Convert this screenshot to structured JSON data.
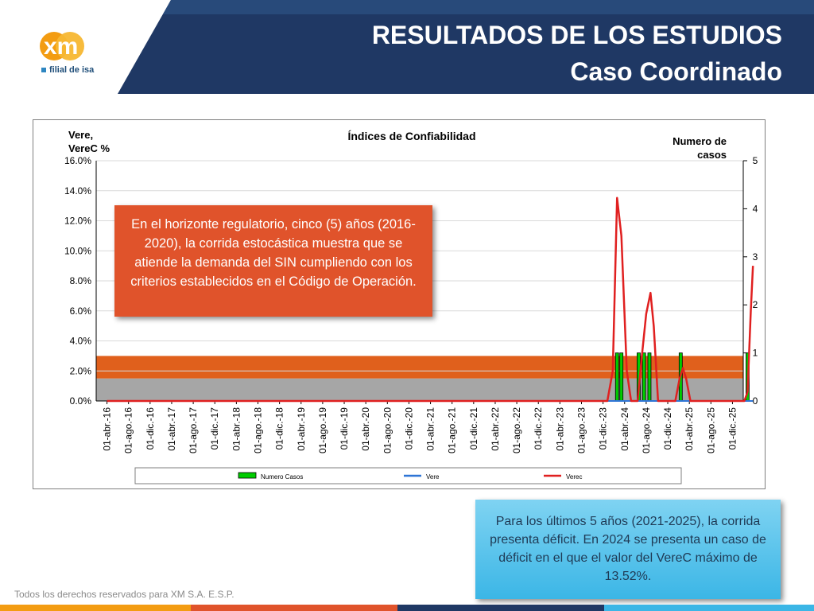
{
  "header": {
    "title_line1": "RESULTADOS DE LOS ESTUDIOS",
    "title_line2": "Caso Coordinado",
    "logo_text": "xm",
    "logo_subtext": "filial de isa"
  },
  "callouts": {
    "orange": "En el horizonte regulatorio, cinco (5) años (2016-2020), la corrida estocástica muestra que se atiende la demanda del SIN cumpliendo con los criterios establecidos en el Código de Operación.",
    "blue": "Para los últimos 5 años (2021-2025), la corrida presenta déficit. En 2024 se presenta un caso de déficit en el que el valor del VereC máximo de 13.52%."
  },
  "footer": "Todos los derechos reservados para XM S.A. E.S.P.",
  "colors": {
    "navy": "#1f3864",
    "orange_band": "#e0601c",
    "gray_band": "#a6a6a6",
    "callout_orange": "#e0532b",
    "callout_blue": "#3bb6e6",
    "series_casos": "#00cc00",
    "series_vere": "#2e75d6",
    "series_verec": "#e02020"
  },
  "chart_data": {
    "type": "line",
    "title": "Índices de Confiabilidad",
    "ylabel": "Vere, VereC %",
    "y2label": "Numero de casos",
    "ylim": [
      0,
      16
    ],
    "y2lim": [
      0,
      5
    ],
    "yticks": [
      "0.0%",
      "2.0%",
      "4.0%",
      "6.0%",
      "8.0%",
      "10.0%",
      "12.0%",
      "14.0%",
      "16.0%"
    ],
    "y2ticks": [
      "0",
      "1",
      "2",
      "3",
      "4",
      "5"
    ],
    "categories": [
      "01-abr.-16",
      "01-ago.-16",
      "01-dic.-16",
      "01-abr.-17",
      "01-ago.-17",
      "01-dic.-17",
      "01-abr.-18",
      "01-ago.-18",
      "01-dic.-18",
      "01-abr.-19",
      "01-ago.-19",
      "01-dic.-19",
      "01-abr.-20",
      "01-ago.-20",
      "01-dic.-20",
      "01-abr.-21",
      "01-ago.-21",
      "01-dic.-21",
      "01-abr.-22",
      "01-ago.-22",
      "01-dic.-22",
      "01-abr.-23",
      "01-ago.-23",
      "01-dic.-23",
      "01-abr.-24",
      "01-ago.-24",
      "01-dic.-24",
      "01-abr.-25",
      "01-ago.-25",
      "01-dic.-25"
    ],
    "bands": [
      {
        "from": 0,
        "to": 1.5,
        "color": "#a6a6a6"
      },
      {
        "from": 1.5,
        "to": 3.0,
        "color": "#e0601c"
      }
    ],
    "legend": [
      "Numero Casos",
      "Vere",
      "Verec"
    ],
    "legend_position": "bottom",
    "casos_bars": [
      {
        "x": 23.65,
        "v": 1
      },
      {
        "x": 23.85,
        "v": 1
      },
      {
        "x": 24.65,
        "v": 1
      },
      {
        "x": 24.9,
        "v": 1
      },
      {
        "x": 25.15,
        "v": 1
      },
      {
        "x": 26.6,
        "v": 1
      },
      {
        "x": 29.7,
        "v": 1
      }
    ],
    "verec_series": [
      [
        0,
        0
      ],
      [
        23.2,
        0
      ],
      [
        23.45,
        2
      ],
      [
        23.65,
        13.52
      ],
      [
        23.85,
        11
      ],
      [
        24.1,
        2
      ],
      [
        24.3,
        0
      ],
      [
        24.6,
        0
      ],
      [
        24.8,
        3
      ],
      [
        25.0,
        5.8
      ],
      [
        25.2,
        7.2
      ],
      [
        25.35,
        5
      ],
      [
        25.55,
        0
      ],
      [
        26.35,
        0
      ],
      [
        26.55,
        1.5
      ],
      [
        26.7,
        2.2
      ],
      [
        26.85,
        1.5
      ],
      [
        27.05,
        0
      ],
      [
        29.55,
        0
      ],
      [
        29.7,
        0.6
      ],
      [
        29.85,
        6
      ],
      [
        29.95,
        9
      ]
    ],
    "vere_series": [
      [
        0,
        0
      ],
      [
        29.95,
        0
      ]
    ]
  }
}
